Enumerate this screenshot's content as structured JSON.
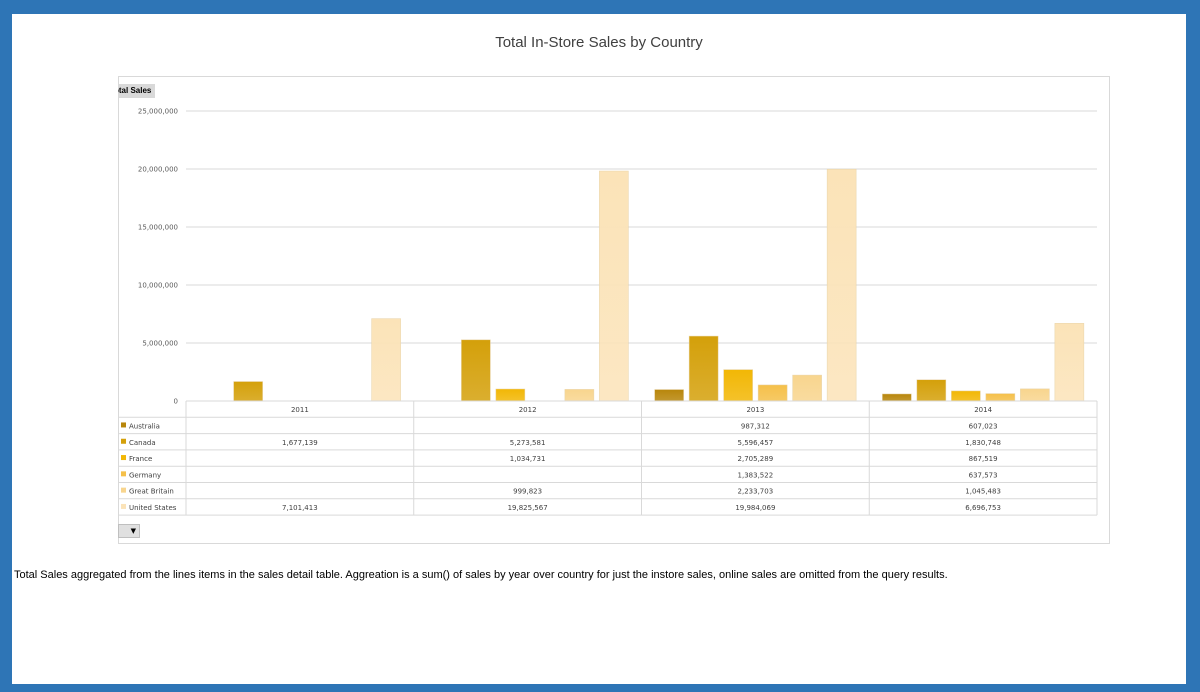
{
  "caption": "Total Sales aggregated from the lines items in the sales detail table. Aggreation is a sum() of sales by year over country for just the instore sales, online sales are omitted from the query results.",
  "pivot_field_label": "otal Sales",
  "filter_button_icon": "dropdown-triangle-icon",
  "chart_data": {
    "type": "bar",
    "title": "Total In-Store Sales by Country",
    "xlabel": "",
    "ylabel": "",
    "ylim": [
      0,
      25000000
    ],
    "y_ticks": [
      0,
      5000000,
      10000000,
      15000000,
      20000000,
      25000000
    ],
    "y_tick_labels": [
      "0",
      "5,000,000",
      "10,000,000",
      "15,000,000",
      "20,000,000",
      "25,000,000"
    ],
    "grid": true,
    "legend": "data-table",
    "categories": [
      "2011",
      "2012",
      "2013",
      "2014"
    ],
    "series": [
      {
        "name": "Australia",
        "color": "#b8860b",
        "values": [
          null,
          null,
          987312,
          607023
        ],
        "labels": [
          "",
          "",
          "987,312",
          "607,023"
        ]
      },
      {
        "name": "Canada",
        "color": "#d4a00a",
        "values": [
          1677139,
          5273581,
          5596457,
          1830748
        ],
        "labels": [
          "1,677,139",
          "5,273,581",
          "5,596,457",
          "1,830,748"
        ]
      },
      {
        "name": "France",
        "color": "#f2b705",
        "values": [
          null,
          1034731,
          2705289,
          867519
        ],
        "labels": [
          "",
          "1,034,731",
          "2,705,289",
          "867,519"
        ]
      },
      {
        "name": "Germany",
        "color": "#f5c04a",
        "values": [
          null,
          null,
          1383522,
          637573
        ],
        "labels": [
          "",
          "",
          "1,383,522",
          "637,573"
        ]
      },
      {
        "name": "Great Britain",
        "color": "#f8d58e",
        "values": [
          null,
          999823,
          2233703,
          1045483
        ],
        "labels": [
          "",
          "999,823",
          "2,233,703",
          "1,045,483"
        ]
      },
      {
        "name": "United States",
        "color": "#fbe3b8",
        "values": [
          7101413,
          19825567,
          19984069,
          6696753
        ],
        "labels": [
          "7,101,413",
          "19,825,567",
          "19,984,069",
          "6,696,753"
        ]
      }
    ]
  }
}
